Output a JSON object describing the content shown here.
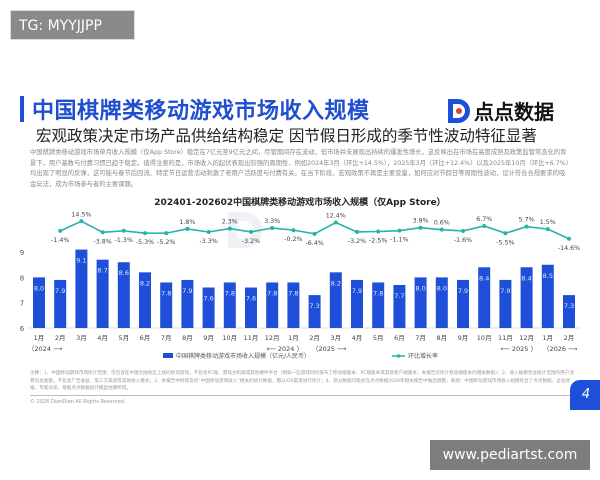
{
  "overlay_tag": "TG: MYYJJPP",
  "header": {
    "title": "中国棋牌类移动游戏市场收入规模",
    "subtitle": "宏观政策决定市场产品供给结构稳定 因节假日形成的季节性波动特征显著",
    "logo_text": "点点数据",
    "body": "中国棋牌类移动游戏市场单月收入规模（仅App Store）稳定在7亿元至9亿元之间，尽管期间存在波动，但市场并未展现出持续的爆发性增长，这反映出在市场在高度成熟及政策监管常态化的背景下，用户基数与付费习惯已趋于稳定。值得注意的是，市场收入的起伏表现出较强的周期性，例如2024年3月（环比+14.5%），2025年3月（环比+12.4%）以及2025年10月（环比+6.7%）均出现了明显的反弹，这可能与春节后回流、特定节日运营活动刺激了老用户活跃度与付费有关。在当下阶段，宏观政策不再是主要变量，如何应对节假日等周期性波动，设计符合合规要求的吸金玩法，成为市场参与者的主要课题。"
  },
  "chart_data": {
    "type": "bar+line",
    "title": "202401-202602中国棋牌类移动游戏市场收入规模（仅App Store）",
    "categories": [
      "1月",
      "2月",
      "3月",
      "4月",
      "5月",
      "6月",
      "7月",
      "8月",
      "9月",
      "10月",
      "11月",
      "12月",
      "1月",
      "2月",
      "3月",
      "4月",
      "5月",
      "6月",
      "7月",
      "8月",
      "9月",
      "10月",
      "11月",
      "12月",
      "1月",
      "2月"
    ],
    "year_labels": [
      "（2024 ⟶",
      "⟵ 2024 ）",
      "（2025 ⟶",
      "⟵ 2025 ）",
      "（2026 ⟶"
    ],
    "y_ticks": [
      6,
      7,
      8,
      9
    ],
    "ylim": [
      6,
      9.3
    ],
    "series": [
      {
        "name": "中国棋牌类移动游戏市场收入规模（亿元/人民币）",
        "type": "bar",
        "color": "#1f4fd8",
        "values": [
          8.0,
          7.9,
          9.1,
          8.7,
          8.6,
          8.2,
          7.8,
          7.9,
          7.6,
          7.8,
          7.6,
          7.8,
          7.8,
          7.3,
          8.2,
          7.9,
          7.8,
          7.7,
          8.0,
          8.0,
          7.9,
          8.4,
          7.9,
          8.4,
          8.5,
          7.3
        ]
      },
      {
        "name": "环比增长率",
        "type": "line",
        "color": "#26b3a8",
        "unit": "%",
        "values": [
          null,
          -1.4,
          14.5,
          -3.8,
          -1.3,
          -5.3,
          -5.2,
          1.8,
          -3.3,
          2.3,
          -3.2,
          3.3,
          -0.2,
          -6.4,
          12.4,
          -3.2,
          -2.5,
          -1.1,
          3.8,
          0.6,
          -1.6,
          6.7,
          -5.5,
          5.7,
          1.5,
          -14.6
        ]
      }
    ],
    "legend": "bottom",
    "watermark": "点点数据"
  },
  "footer": {
    "notes": "注释：1、中国移动游戏市场统计范围：仅包含在中国大陆地区上线的移动游戏，不包含PC端、游戏主机端或其他硬件平台（例如一些游戏同时发布了移动端版本、PC端版本或其他客户端版本，本报告仅统计移动端版本的相关数据）；2、收入规模包含统计范围内用户消费的总金额，不包含广告收益、第三方渠道等其他收入模式；3、本报告中所提及的“中国移动游戏收入”相关的统计数据，都以iOS渠道进行统计；4、部分数据可能会在点点数据2026年相关报告中做出调整。来源：中国移动游戏市场收入规模综合了点点数据、企业财报、专家访谈，根据点点数据统计模型估算所得。",
    "copyright": "© 2026 DianDian All Rights Reserved.",
    "page_number": "4"
  },
  "bottom_watermark": "www.pediartst.com"
}
